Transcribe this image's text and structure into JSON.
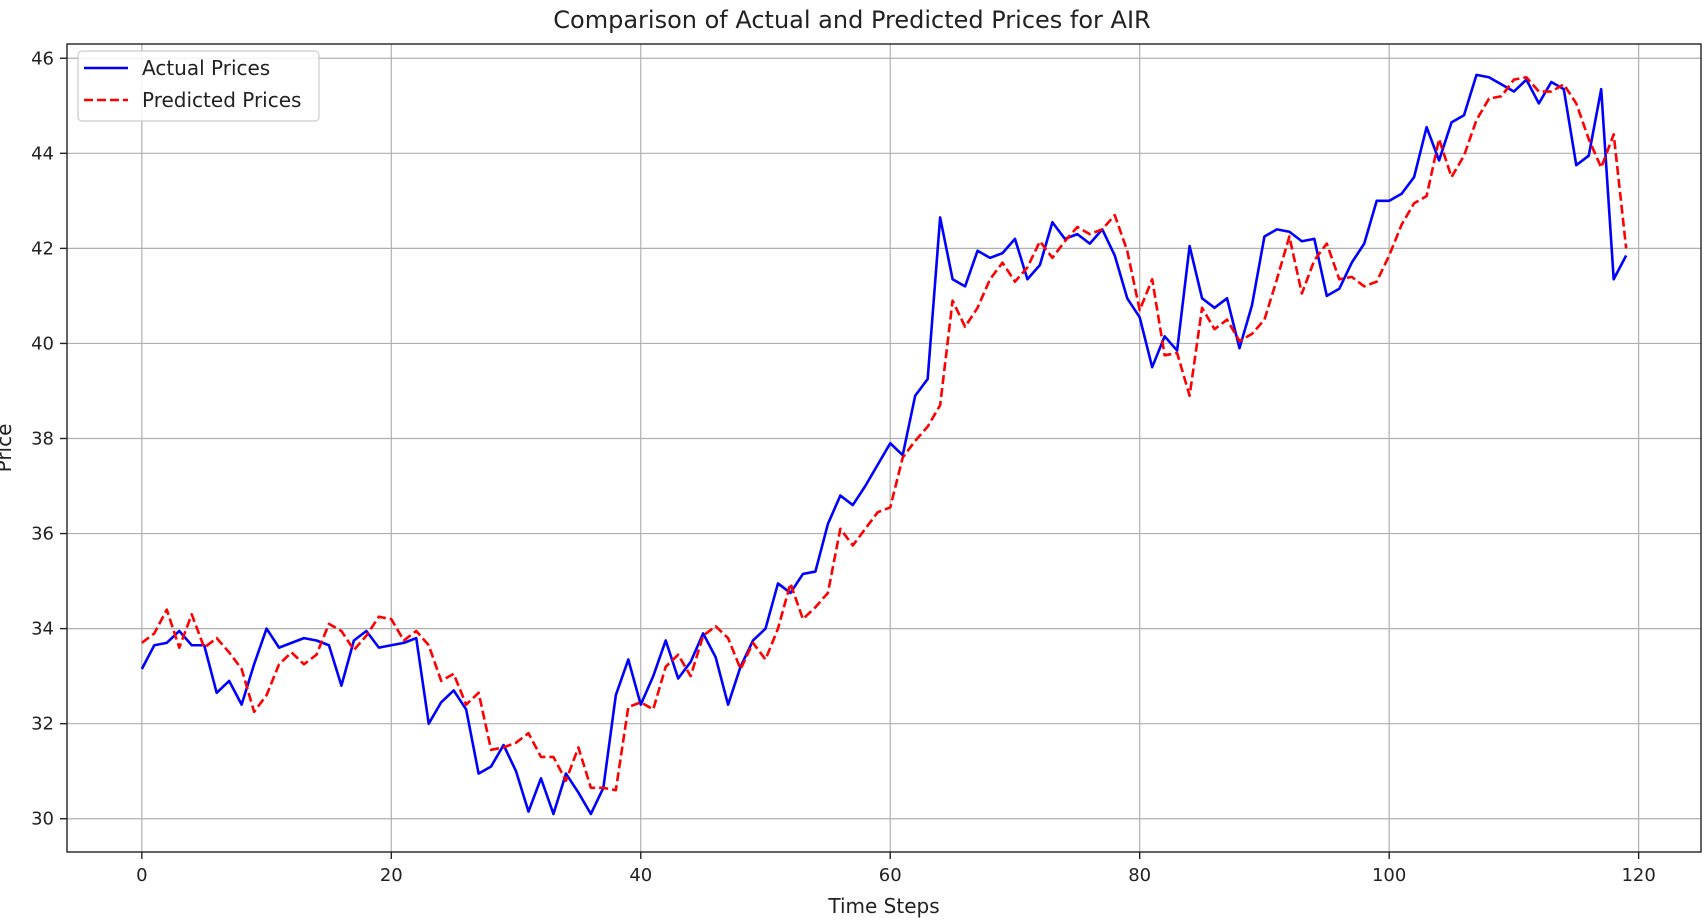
{
  "chart_data": {
    "type": "line",
    "title": "Comparison of Actual and Predicted Prices for AIR",
    "xlabel": "Time Steps",
    "ylabel": "Price",
    "xlim": [
      -6,
      125
    ],
    "ylim": [
      29.3,
      46.3
    ],
    "xticks": [
      0,
      20,
      40,
      60,
      80,
      100,
      120
    ],
    "yticks": [
      30,
      32,
      34,
      36,
      38,
      40,
      42,
      44,
      46
    ],
    "grid": true,
    "legend_position": "top-left",
    "series": [
      {
        "name": "Actual Prices",
        "color": "#0000ff",
        "style": "solid",
        "values": [
          33.15,
          33.65,
          33.7,
          33.95,
          33.65,
          33.65,
          32.65,
          32.9,
          32.4,
          33.25,
          34.0,
          33.6,
          33.7,
          33.8,
          33.75,
          33.65,
          32.8,
          33.75,
          33.95,
          33.6,
          33.65,
          33.7,
          33.8,
          32.0,
          32.45,
          32.7,
          32.3,
          30.95,
          31.1,
          31.55,
          31.0,
          30.15,
          30.85,
          30.1,
          30.95,
          30.55,
          30.1,
          30.65,
          32.6,
          33.35,
          32.4,
          33.0,
          33.75,
          32.95,
          33.3,
          33.9,
          33.4,
          32.4,
          33.2,
          33.75,
          34.0,
          34.95,
          34.75,
          35.15,
          35.2,
          36.2,
          36.8,
          36.6,
          37.0,
          37.45,
          37.9,
          37.65,
          38.9,
          39.25,
          42.65,
          41.35,
          41.2,
          41.95,
          41.8,
          41.9,
          42.2,
          41.35,
          41.65,
          42.55,
          42.2,
          42.3,
          42.1,
          42.4,
          41.85,
          40.95,
          40.55,
          39.5,
          40.15,
          39.85,
          42.05,
          40.95,
          40.75,
          40.95,
          39.9,
          40.8,
          42.25,
          42.4,
          42.35,
          42.15,
          42.2,
          41.0,
          41.15,
          41.7,
          42.1,
          43.0,
          43.0,
          43.15,
          43.5,
          44.55,
          43.85,
          44.65,
          44.8,
          45.65,
          45.6,
          45.45,
          45.3,
          45.55,
          45.05,
          45.5,
          45.35,
          43.75,
          43.95,
          45.35,
          41.35,
          41.85
        ]
      },
      {
        "name": "Predicted Prices",
        "color": "#ff0000",
        "style": "dashed",
        "values": [
          33.7,
          33.9,
          34.4,
          33.6,
          34.3,
          33.6,
          33.8,
          33.5,
          33.15,
          32.25,
          32.6,
          33.25,
          33.5,
          33.25,
          33.45,
          34.1,
          33.95,
          33.55,
          33.85,
          34.25,
          34.2,
          33.75,
          33.95,
          33.65,
          32.9,
          33.05,
          32.4,
          32.65,
          31.45,
          31.5,
          31.6,
          31.8,
          31.3,
          31.3,
          30.8,
          31.5,
          30.65,
          30.65,
          30.6,
          32.35,
          32.45,
          32.3,
          33.2,
          33.45,
          33.0,
          33.85,
          34.05,
          33.8,
          33.15,
          33.7,
          33.35,
          34.0,
          34.95,
          34.2,
          34.45,
          34.75,
          36.1,
          35.75,
          36.1,
          36.45,
          36.55,
          37.6,
          37.95,
          38.25,
          38.7,
          40.9,
          40.35,
          40.75,
          41.35,
          41.7,
          41.3,
          41.6,
          42.15,
          41.8,
          42.15,
          42.45,
          42.3,
          42.4,
          42.7,
          41.95,
          40.7,
          41.35,
          39.75,
          39.8,
          38.9,
          40.75,
          40.3,
          40.5,
          40.05,
          40.2,
          40.5,
          41.35,
          42.25,
          41.05,
          41.75,
          42.1,
          41.35,
          41.4,
          41.2,
          41.3,
          41.85,
          42.5,
          42.95,
          43.1,
          44.3,
          43.5,
          43.95,
          44.7,
          45.15,
          45.2,
          45.55,
          45.6,
          45.3,
          45.3,
          45.45,
          45.05,
          44.3,
          43.7,
          44.4,
          42.0
        ]
      }
    ]
  }
}
